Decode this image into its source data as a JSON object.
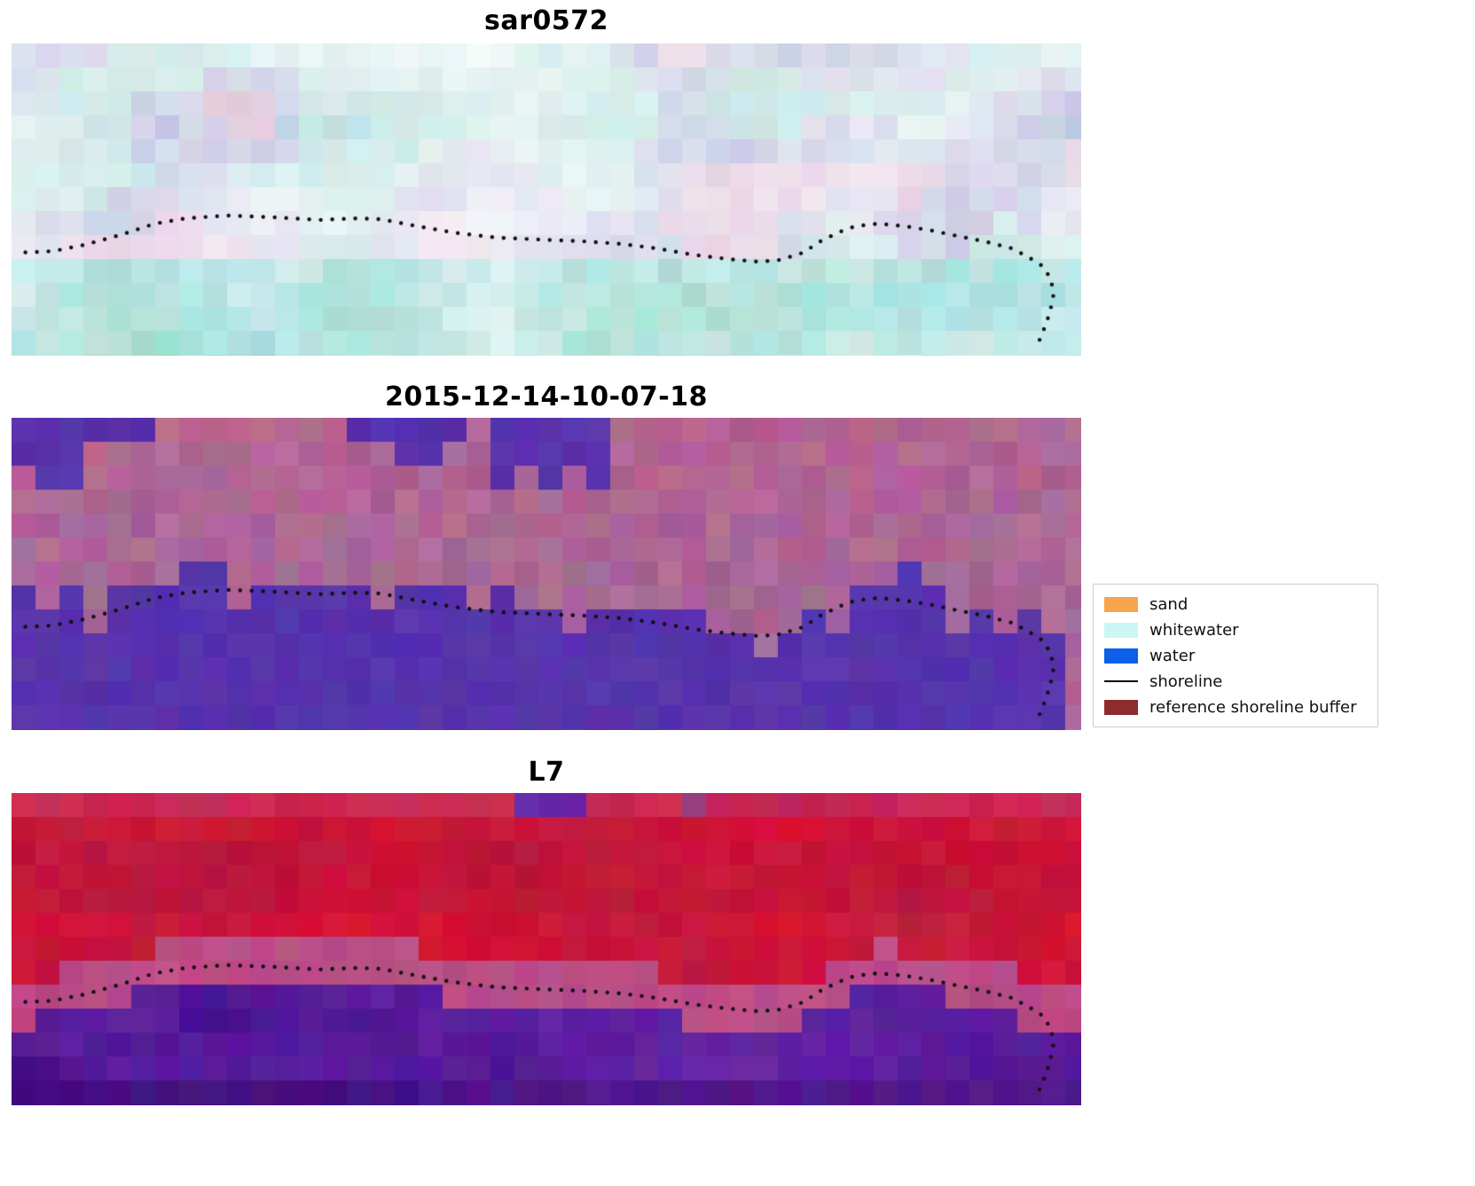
{
  "figure": {
    "background": "#ffffff",
    "panels": [
      {
        "title": "sar0572"
      },
      {
        "title": "2015-12-14-10-07-18"
      },
      {
        "title": "L7"
      }
    ],
    "legend": {
      "items": [
        {
          "label": "sand",
          "swatch": "patch",
          "color": "#f7a54c"
        },
        {
          "label": "whitewater",
          "swatch": "patch",
          "color": "#ccf6f6"
        },
        {
          "label": "water",
          "swatch": "patch",
          "color": "#0c5fe8"
        },
        {
          "label": "shoreline",
          "swatch": "line",
          "color": "#000000"
        },
        {
          "label": "reference shoreline buffer",
          "swatch": "patch",
          "color": "#8c2c2c"
        }
      ]
    },
    "colors": {
      "shoreline_dots": "#101010",
      "class_water": "#5733ac",
      "class_land": "#a76897",
      "l7_red": "#ce1034",
      "l7_purple": "#6a24aa",
      "sar_cyan": "#bdeede"
    }
  },
  "chart_data": {
    "type": "heatmap",
    "panels": [
      {
        "title": "sar0572",
        "kind": "sar-rgb-image",
        "description": "pale cyan/white speckled SAR backscatter image with dotted detected shoreline, tail dropping to bottom at far right"
      },
      {
        "title": "2015-12-14-10-07-18",
        "kind": "classified-image",
        "description": "mauve/purple scene; indigo water class fills region below shoreline; indigo cloud patches along top edge"
      },
      {
        "title": "L7",
        "kind": "landsat7-rgb-image",
        "description": "crimson land/upper region, mauve transition band, purple water region below dotted shoreline"
      }
    ],
    "legend_entries": [
      "sand",
      "whitewater",
      "water",
      "shoreline",
      "reference shoreline buffer"
    ],
    "shoreline_points": [
      [
        0.008,
        0.67
      ],
      [
        0.039,
        0.665
      ],
      [
        0.068,
        0.645
      ],
      [
        0.101,
        0.614
      ],
      [
        0.134,
        0.577
      ],
      [
        0.163,
        0.56
      ],
      [
        0.201,
        0.551
      ],
      [
        0.246,
        0.557
      ],
      [
        0.288,
        0.565
      ],
      [
        0.325,
        0.56
      ],
      [
        0.346,
        0.563
      ],
      [
        0.379,
        0.585
      ],
      [
        0.412,
        0.605
      ],
      [
        0.454,
        0.622
      ],
      [
        0.495,
        0.628
      ],
      [
        0.537,
        0.634
      ],
      [
        0.57,
        0.642
      ],
      [
        0.603,
        0.656
      ],
      [
        0.636,
        0.676
      ],
      [
        0.669,
        0.69
      ],
      [
        0.698,
        0.699
      ],
      [
        0.719,
        0.693
      ],
      [
        0.74,
        0.67
      ],
      [
        0.756,
        0.634
      ],
      [
        0.773,
        0.605
      ],
      [
        0.789,
        0.585
      ],
      [
        0.81,
        0.577
      ],
      [
        0.835,
        0.585
      ],
      [
        0.86,
        0.599
      ],
      [
        0.885,
        0.617
      ],
      [
        0.91,
        0.634
      ],
      [
        0.935,
        0.656
      ],
      [
        0.951,
        0.685
      ],
      [
        0.964,
        0.713
      ],
      [
        0.972,
        0.756
      ],
      [
        0.974,
        0.813
      ],
      [
        0.97,
        0.869
      ],
      [
        0.964,
        0.926
      ],
      [
        0.958,
        0.974
      ]
    ]
  }
}
